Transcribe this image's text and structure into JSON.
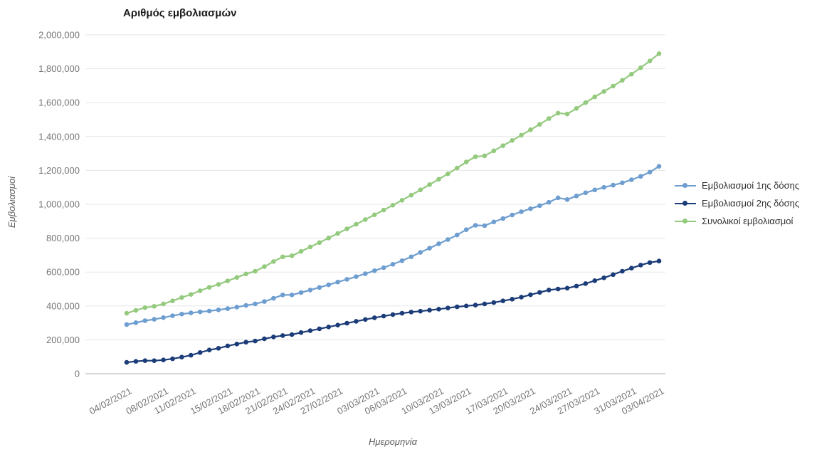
{
  "chart_data": {
    "type": "line",
    "title": "Αριθμός εμβολιασμών",
    "xlabel": "Ημερομηνία",
    "ylabel": "Εμβολιασμοί",
    "ylim": [
      0,
      2000000
    ],
    "y_tick_step": 200000,
    "y_tick_labels": [
      "0",
      "200,000",
      "400,000",
      "600,000",
      "800,000",
      "1,000,000",
      "1,200,000",
      "1,400,000",
      "1,600,000",
      "1,800,000",
      "2,000,000"
    ],
    "grid": "horizontal",
    "legend_position": "right",
    "markers": true,
    "x": [
      "04/02/2021",
      "05/02/2021",
      "06/02/2021",
      "07/02/2021",
      "08/02/2021",
      "09/02/2021",
      "10/02/2021",
      "11/02/2021",
      "12/02/2021",
      "13/02/2021",
      "14/02/2021",
      "15/02/2021",
      "16/02/2021",
      "17/02/2021",
      "18/02/2021",
      "19/02/2021",
      "20/02/2021",
      "21/02/2021",
      "22/02/2021",
      "23/02/2021",
      "24/02/2021",
      "25/02/2021",
      "26/02/2021",
      "27/02/2021",
      "28/02/2021",
      "01/03/2021",
      "02/03/2021",
      "03/03/2021",
      "04/03/2021",
      "05/03/2021",
      "06/03/2021",
      "07/03/2021",
      "08/03/2021",
      "09/03/2021",
      "10/03/2021",
      "11/03/2021",
      "12/03/2021",
      "13/03/2021",
      "14/03/2021",
      "15/03/2021",
      "16/03/2021",
      "17/03/2021",
      "18/03/2021",
      "19/03/2021",
      "20/03/2021",
      "21/03/2021",
      "22/03/2021",
      "23/03/2021",
      "24/03/2021",
      "25/03/2021",
      "26/03/2021",
      "27/03/2021",
      "28/03/2021",
      "29/03/2021",
      "30/03/2021",
      "31/03/2021",
      "01/04/2021",
      "02/04/2021",
      "03/04/2021"
    ],
    "x_tick_indices": [
      0,
      4,
      7,
      11,
      14,
      17,
      20,
      23,
      27,
      30,
      34,
      37,
      41,
      44,
      48,
      51,
      55,
      58
    ],
    "x_tick_labels": [
      "04/02/2021",
      "08/02/2021",
      "11/02/2021",
      "15/02/2021",
      "18/02/2021",
      "21/02/2021",
      "24/02/2021",
      "27/02/2021",
      "03/03/2021",
      "06/03/2021",
      "10/03/2021",
      "13/03/2021",
      "17/03/2021",
      "20/03/2021",
      "24/03/2021",
      "27/03/2021",
      "31/03/2021",
      "03/04/2021"
    ],
    "series": [
      {
        "key": "first-dose",
        "name": "Εμβολιασμοί 1ης δόσης",
        "color": "#6e9ed0",
        "values": [
          290000,
          301000,
          313000,
          321000,
          331000,
          342000,
          352000,
          359000,
          365000,
          370000,
          377000,
          384000,
          393000,
          403000,
          412000,
          426000,
          445000,
          465000,
          465000,
          479000,
          494000,
          509000,
          525000,
          541000,
          557000,
          573000,
          590000,
          608000,
          626000,
          646000,
          667000,
          690000,
          716000,
          741000,
          767000,
          792000,
          819000,
          850000,
          876000,
          874000,
          896000,
          916000,
          937000,
          956000,
          974000,
          992000,
          1012000,
          1038000,
          1028000,
          1049000,
          1068000,
          1085000,
          1100000,
          1113000,
          1127000,
          1145000,
          1165000,
          1190000,
          1224000
        ]
      },
      {
        "key": "second-dose",
        "name": "Εμβολιασμοί 2ης δόσης",
        "color": "#1b3c78",
        "values": [
          67000,
          73000,
          77000,
          77000,
          81000,
          88000,
          98000,
          109000,
          125000,
          140000,
          150000,
          164000,
          175000,
          186000,
          193000,
          206000,
          217000,
          225000,
          231000,
          243000,
          254000,
          265000,
          276000,
          287000,
          298000,
          309000,
          320000,
          330000,
          340000,
          349000,
          357000,
          364000,
          369000,
          375000,
          381000,
          388000,
          395000,
          400000,
          405000,
          412000,
          420000,
          430000,
          440000,
          452000,
          466000,
          480000,
          494000,
          500000,
          505000,
          517000,
          532000,
          549000,
          566000,
          585000,
          605000,
          623000,
          641000,
          656000,
          665000
        ]
      },
      {
        "key": "total",
        "name": "Συνολικοί εμβολιασμοί",
        "color": "#94ca7e",
        "values": [
          357000,
          374000,
          390000,
          398000,
          412000,
          430000,
          450000,
          468000,
          490000,
          510000,
          527000,
          548000,
          568000,
          589000,
          605000,
          632000,
          662000,
          690000,
          696000,
          722000,
          748000,
          774000,
          801000,
          828000,
          855000,
          882000,
          910000,
          938000,
          966000,
          995000,
          1024000,
          1054000,
          1085000,
          1116000,
          1148000,
          1180000,
          1214000,
          1250000,
          1281000,
          1286000,
          1316000,
          1346000,
          1377000,
          1408000,
          1440000,
          1472000,
          1506000,
          1538000,
          1533000,
          1566000,
          1600000,
          1634000,
          1666000,
          1698000,
          1732000,
          1768000,
          1806000,
          1846000,
          1889000
        ]
      }
    ],
    "colors": {
      "gridline": "#e6e6e6",
      "axis_line": "#adadad",
      "tick_text": "#757575"
    }
  }
}
